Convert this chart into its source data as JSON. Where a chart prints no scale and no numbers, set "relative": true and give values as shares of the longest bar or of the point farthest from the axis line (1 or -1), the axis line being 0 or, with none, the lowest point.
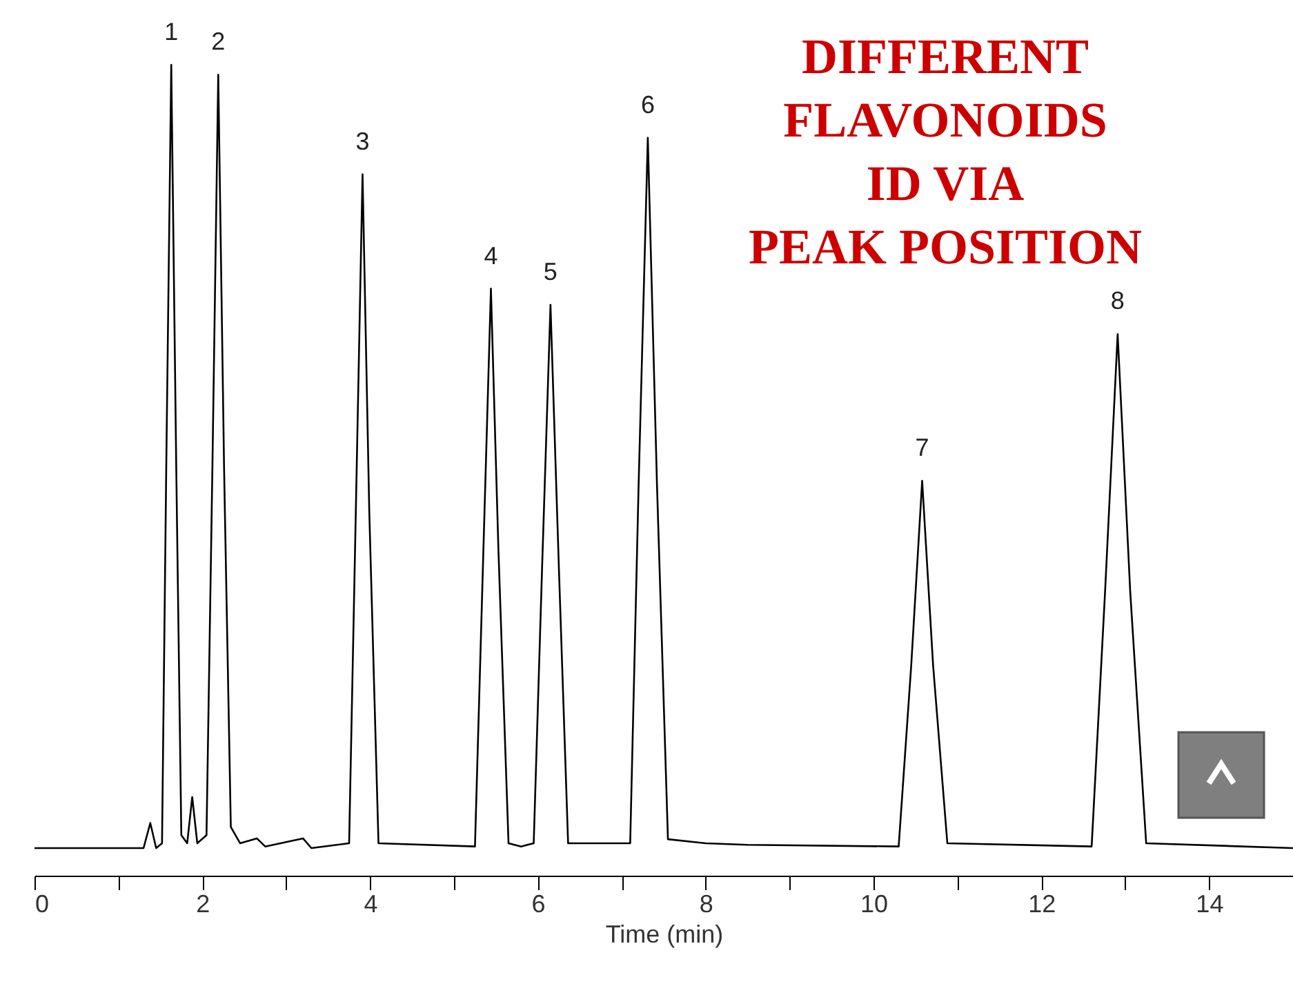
{
  "chart_data": {
    "type": "line",
    "relative": true,
    "xlabel": "Time (min)",
    "xlim": [
      0,
      15
    ],
    "xticks": [
      0,
      {
        "value": 1,
        "label": null
      },
      2,
      {
        "value": 3,
        "label": null
      },
      4,
      {
        "value": 5,
        "label": null
      },
      6,
      {
        "value": 7,
        "label": null
      },
      8,
      {
        "value": 9,
        "label": null
      },
      10,
      {
        "value": 11,
        "label": null
      },
      12,
      {
        "value": 13,
        "label": null
      },
      14
    ],
    "grid": false,
    "marker": "none",
    "line_style": "solid",
    "series": [
      {
        "color": "#000000",
        "x": [
          0,
          1.3,
          1.38,
          1.45,
          1.52,
          1.57,
          1.63,
          1.69,
          1.75,
          1.82,
          1.88,
          1.94,
          2.05,
          2.12,
          2.19,
          2.26,
          2.34,
          2.45,
          2.65,
          2.75,
          3.2,
          3.3,
          3.75,
          3.83,
          3.91,
          3.99,
          4.1,
          5.25,
          5.35,
          5.44,
          5.53,
          5.65,
          5.8,
          5.95,
          6.05,
          6.15,
          6.25,
          6.36,
          7.1,
          7.2,
          7.31,
          7.42,
          7.55,
          8.0,
          8.5,
          10.3,
          10.45,
          10.58,
          10.71,
          10.88,
          12.6,
          12.76,
          12.91,
          13.06,
          13.25,
          15
        ],
        "values": [
          0.034,
          0.034,
          0.065,
          0.034,
          0.04,
          0.5,
          1.0,
          0.5,
          0.05,
          0.04,
          0.097,
          0.04,
          0.05,
          0.5,
          0.988,
          0.5,
          0.06,
          0.04,
          0.046,
          0.036,
          0.046,
          0.034,
          0.04,
          0.45,
          0.865,
          0.45,
          0.04,
          0.036,
          0.4,
          0.724,
          0.4,
          0.04,
          0.036,
          0.04,
          0.38,
          0.704,
          0.38,
          0.04,
          0.04,
          0.48,
          0.91,
          0.48,
          0.045,
          0.04,
          0.038,
          0.036,
          0.26,
          0.487,
          0.26,
          0.04,
          0.036,
          0.35,
          0.668,
          0.35,
          0.04,
          0.034
        ]
      }
    ],
    "annotations": [
      {
        "text": "1",
        "x": 1.63,
        "y": 1.0
      },
      {
        "text": "2",
        "x": 2.19,
        "y": 0.988
      },
      {
        "text": "3",
        "x": 3.91,
        "y": 0.865
      },
      {
        "text": "4",
        "x": 5.44,
        "y": 0.724
      },
      {
        "text": "5",
        "x": 6.15,
        "y": 0.704
      },
      {
        "text": "6",
        "x": 7.31,
        "y": 0.91
      },
      {
        "text": "7",
        "x": 10.58,
        "y": 0.487
      },
      {
        "text": "8",
        "x": 12.91,
        "y": 0.668
      },
      "DIFFERENT",
      "FLAVONOIDS",
      "ID VIA",
      "PEAK POSITION"
    ]
  }
}
